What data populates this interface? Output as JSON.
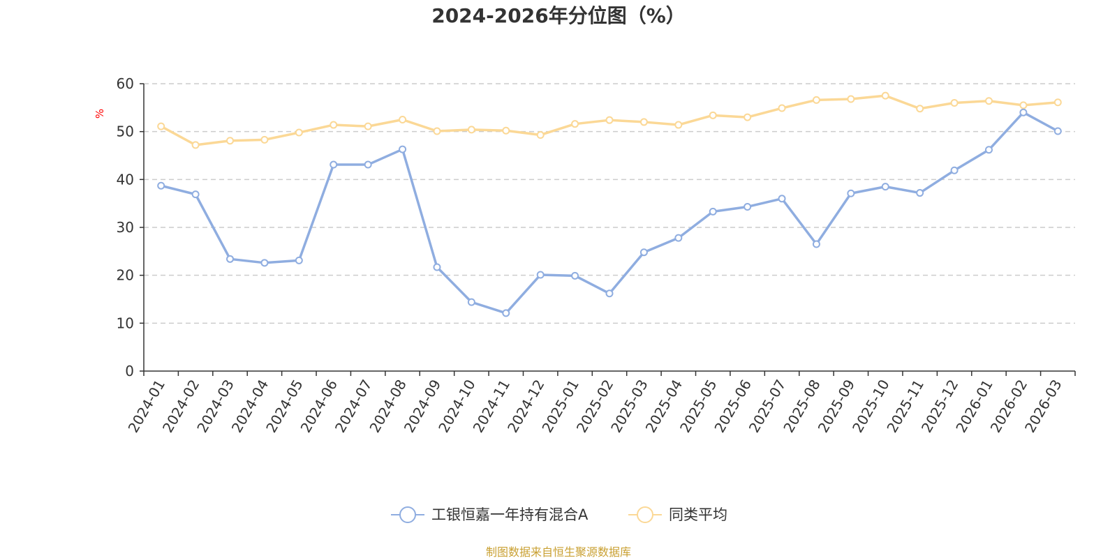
{
  "chart_data": {
    "type": "line",
    "title": "2024-2026年分位图（%）",
    "ylabel": "%",
    "ylim": [
      0,
      60
    ],
    "yticks": [
      0,
      10,
      20,
      30,
      40,
      50,
      60
    ],
    "grid": true,
    "legend_position": "bottom",
    "x": [
      "2024-01",
      "2024-02",
      "2024-03",
      "2024-04",
      "2024-05",
      "2024-06",
      "2024-07",
      "2024-08",
      "2024-09",
      "2024-10",
      "2024-11",
      "2024-12",
      "2025-01",
      "2025-02",
      "2025-03",
      "2025-04",
      "2025-05",
      "2025-06",
      "2025-07",
      "2025-08",
      "2025-09",
      "2025-10",
      "2025-11",
      "2025-12",
      "2026-01",
      "2026-02",
      "2026-03"
    ],
    "series": [
      {
        "name": "工银恒嘉一年持有混合A",
        "color": "#8fade0",
        "values": [
          38.7,
          36.9,
          23.4,
          22.6,
          23.1,
          43.1,
          43.1,
          46.3,
          21.7,
          14.4,
          12.1,
          20.1,
          19.9,
          16.2,
          24.8,
          27.8,
          33.3,
          34.3,
          36.0,
          26.5,
          37.1,
          38.5,
          37.2,
          41.9,
          46.2,
          54.0,
          50.1
        ]
      },
      {
        "name": "同类平均",
        "color": "#fbd896",
        "values": [
          51.1,
          47.2,
          48.1,
          48.3,
          49.8,
          51.4,
          51.1,
          52.5,
          50.1,
          50.4,
          50.2,
          49.3,
          51.6,
          52.4,
          52.0,
          51.4,
          53.4,
          53.0,
          54.9,
          56.6,
          56.8,
          57.5,
          54.8,
          56.0,
          56.4,
          55.5,
          56.1
        ]
      }
    ]
  },
  "colors": {
    "axis": "#333333",
    "grid": "#cccccc",
    "unit": "#ff0000",
    "source": "#c9a032"
  },
  "source_text": "制图数据来自恒生聚源数据库"
}
